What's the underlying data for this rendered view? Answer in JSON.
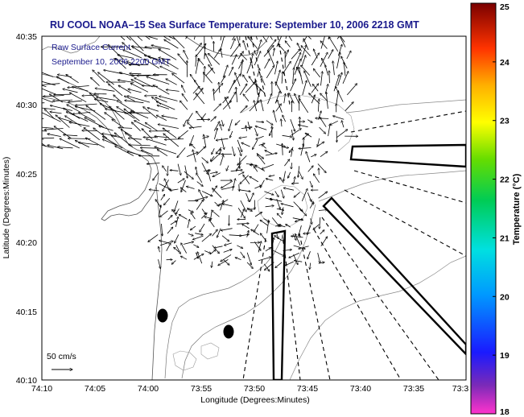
{
  "title": "RU COOL  NOAA–15  Sea Surface Temperature:  September 10, 2006 2218 GMT",
  "legend": {
    "line1": "Raw Surface Current",
    "line2": "September 10, 2006 2200 GMT"
  },
  "axes": {
    "xlabel": "Longitude (Degrees:Minutes)",
    "ylabel": "Latitude (Degrees:Minutes)",
    "xticks": [
      "74:10",
      "74:05",
      "74:00",
      "73:55",
      "73:50",
      "73:45",
      "73:40",
      "73:35",
      "73:3"
    ],
    "yticks": [
      "40:35",
      "40:30",
      "40:25",
      "40:20",
      "40:15",
      "40:10"
    ]
  },
  "colorbar": {
    "label": "Temperature (°C)",
    "ticks": [
      "25",
      "24",
      "23",
      "22",
      "21",
      "20",
      "19",
      "18"
    ],
    "range": [
      18,
      25
    ],
    "colors": [
      "#ff33cc",
      "#7a2ab8",
      "#1a1aff",
      "#0099ff",
      "#00e0e0",
      "#00cc55",
      "#66dd00",
      "#ffff00",
      "#ffb000",
      "#ff3300",
      "#7a0000"
    ]
  },
  "scale": {
    "label": "50 cm/s"
  },
  "colors": {
    "title": "#1a1a8c",
    "land": "#ffffff",
    "coast": "#555555",
    "arrows": "#000000"
  },
  "icons": {
    "markers": "buoy-marker-icon"
  }
}
